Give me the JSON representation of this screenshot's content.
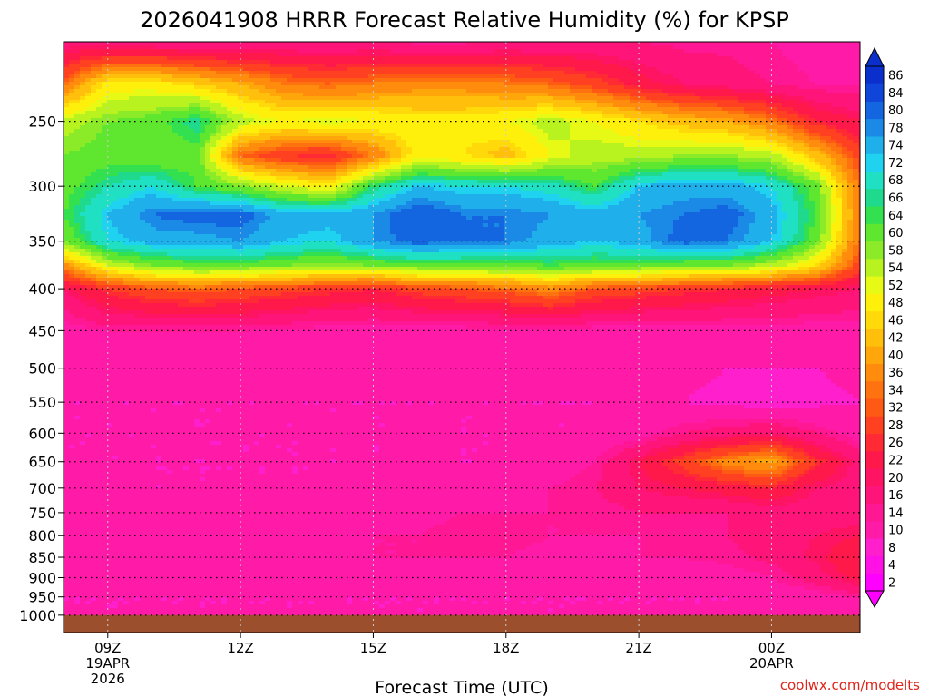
{
  "chart_data": {
    "type": "heatmap",
    "title": "2026041908 HRRR Forecast Relative Humidity (%) for KPSP",
    "xlabel": "Forecast Time (UTC)",
    "ylabel": "",
    "credit": "coolwx.com/modelts",
    "x_ticks": [
      {
        "hour": 9,
        "lines": [
          "09Z",
          "19APR",
          "2026"
        ]
      },
      {
        "hour": 12,
        "lines": [
          "12Z"
        ]
      },
      {
        "hour": 15,
        "lines": [
          "15Z"
        ]
      },
      {
        "hour": 18,
        "lines": [
          "18Z"
        ]
      },
      {
        "hour": 21,
        "lines": [
          "21Z"
        ]
      },
      {
        "hour": 24,
        "lines": [
          "00Z",
          "20APR"
        ]
      }
    ],
    "xlim": [
      8,
      26
    ],
    "ylim": [
      1050,
      200
    ],
    "y_scale": "log",
    "y_ticks": [
      "250",
      "300",
      "350",
      "400",
      "450",
      "500",
      "550",
      "600",
      "650",
      "700",
      "750",
      "800",
      "850",
      "900",
      "950",
      "1000"
    ],
    "ground_level_hpa": 1000,
    "colorbar_levels": [
      "2",
      "4",
      "8",
      "10",
      "14",
      "16",
      "20",
      "22",
      "26",
      "28",
      "32",
      "34",
      "36",
      "40",
      "42",
      "46",
      "48",
      "52",
      "54",
      "58",
      "60",
      "64",
      "66",
      "68",
      "72",
      "74",
      "78",
      "80",
      "84",
      "86"
    ],
    "colors": {
      "ground": "#9c4f2c",
      "grid": "#000000",
      "credit": "#e0241a"
    },
    "hours": [
      8,
      9,
      10,
      11,
      12,
      13,
      14,
      15,
      16,
      17,
      18,
      19,
      20,
      21,
      22,
      23,
      24,
      25,
      26
    ],
    "levels_hpa": [
      200,
      225,
      250,
      275,
      300,
      325,
      350,
      375,
      400,
      450,
      500,
      550,
      600,
      650,
      700,
      750,
      800,
      850,
      900,
      950,
      1000
    ],
    "rh": [
      [
        18,
        16,
        16,
        15,
        15,
        16,
        16,
        16,
        15,
        15,
        16,
        16,
        16,
        16,
        15,
        15,
        14,
        12,
        12
      ],
      [
        34,
        50,
        50,
        46,
        42,
        36,
        34,
        36,
        38,
        38,
        36,
        34,
        30,
        24,
        20,
        18,
        16,
        14,
        14
      ],
      [
        56,
        60,
        62,
        68,
        56,
        52,
        54,
        52,
        50,
        50,
        52,
        56,
        52,
        48,
        44,
        42,
        36,
        26,
        22
      ],
      [
        60,
        62,
        60,
        62,
        34,
        28,
        26,
        36,
        50,
        48,
        44,
        52,
        56,
        56,
        58,
        58,
        56,
        44,
        30
      ],
      [
        62,
        68,
        72,
        64,
        60,
        54,
        50,
        66,
        74,
        72,
        72,
        70,
        64,
        74,
        76,
        76,
        72,
        62,
        34
      ],
      [
        64,
        74,
        80,
        82,
        82,
        76,
        76,
        78,
        84,
        80,
        80,
        78,
        76,
        78,
        80,
        82,
        76,
        64,
        36
      ],
      [
        60,
        72,
        76,
        76,
        78,
        74,
        72,
        78,
        82,
        80,
        80,
        76,
        74,
        76,
        82,
        80,
        74,
        62,
        34
      ],
      [
        38,
        54,
        60,
        62,
        62,
        60,
        58,
        60,
        62,
        62,
        62,
        64,
        62,
        62,
        60,
        60,
        56,
        48,
        30
      ],
      [
        20,
        28,
        32,
        34,
        32,
        30,
        28,
        26,
        30,
        32,
        34,
        38,
        32,
        30,
        28,
        26,
        24,
        22,
        20
      ],
      [
        12,
        14,
        14,
        14,
        14,
        13,
        12,
        12,
        12,
        12,
        12,
        12,
        12,
        12,
        12,
        12,
        12,
        12,
        12
      ],
      [
        11,
        11,
        11,
        11,
        11,
        11,
        11,
        11,
        11,
        11,
        11,
        11,
        11,
        11,
        11,
        10,
        10,
        10,
        11
      ],
      [
        10,
        10,
        10,
        10,
        10,
        10,
        10,
        10,
        10,
        10,
        10,
        10,
        10,
        10,
        10,
        9,
        8,
        9,
        10
      ],
      [
        10,
        10,
        10,
        10,
        10,
        10,
        10,
        10,
        10,
        10,
        10,
        10,
        10,
        12,
        16,
        18,
        20,
        16,
        12
      ],
      [
        10,
        10,
        10,
        10,
        10,
        10,
        10,
        10,
        10,
        10,
        10,
        11,
        14,
        22,
        30,
        38,
        42,
        28,
        18
      ],
      [
        11,
        11,
        10,
        10,
        10,
        10,
        10,
        11,
        11,
        12,
        12,
        14,
        16,
        20,
        22,
        24,
        26,
        20,
        18
      ],
      [
        13,
        12,
        11,
        11,
        11,
        12,
        12,
        13,
        13,
        14,
        14,
        14,
        14,
        16,
        16,
        16,
        18,
        18,
        18
      ],
      [
        14,
        13,
        12,
        12,
        12,
        13,
        14,
        14,
        14,
        15,
        15,
        14,
        14,
        14,
        15,
        16,
        18,
        20,
        22
      ],
      [
        13,
        12,
        12,
        12,
        12,
        12,
        13,
        14,
        14,
        14,
        14,
        13,
        13,
        14,
        14,
        15,
        17,
        21,
        26
      ],
      [
        11,
        11,
        11,
        11,
        11,
        11,
        11,
        12,
        12,
        12,
        12,
        11,
        11,
        11,
        12,
        12,
        14,
        18,
        24
      ],
      [
        10,
        10,
        10,
        10,
        10,
        10,
        10,
        10,
        10,
        10,
        10,
        10,
        10,
        10,
        10,
        10,
        11,
        12,
        14
      ],
      [
        10,
        10,
        10,
        10,
        10,
        10,
        10,
        10,
        10,
        10,
        10,
        10,
        10,
        10,
        10,
        10,
        10,
        10,
        10
      ]
    ]
  }
}
